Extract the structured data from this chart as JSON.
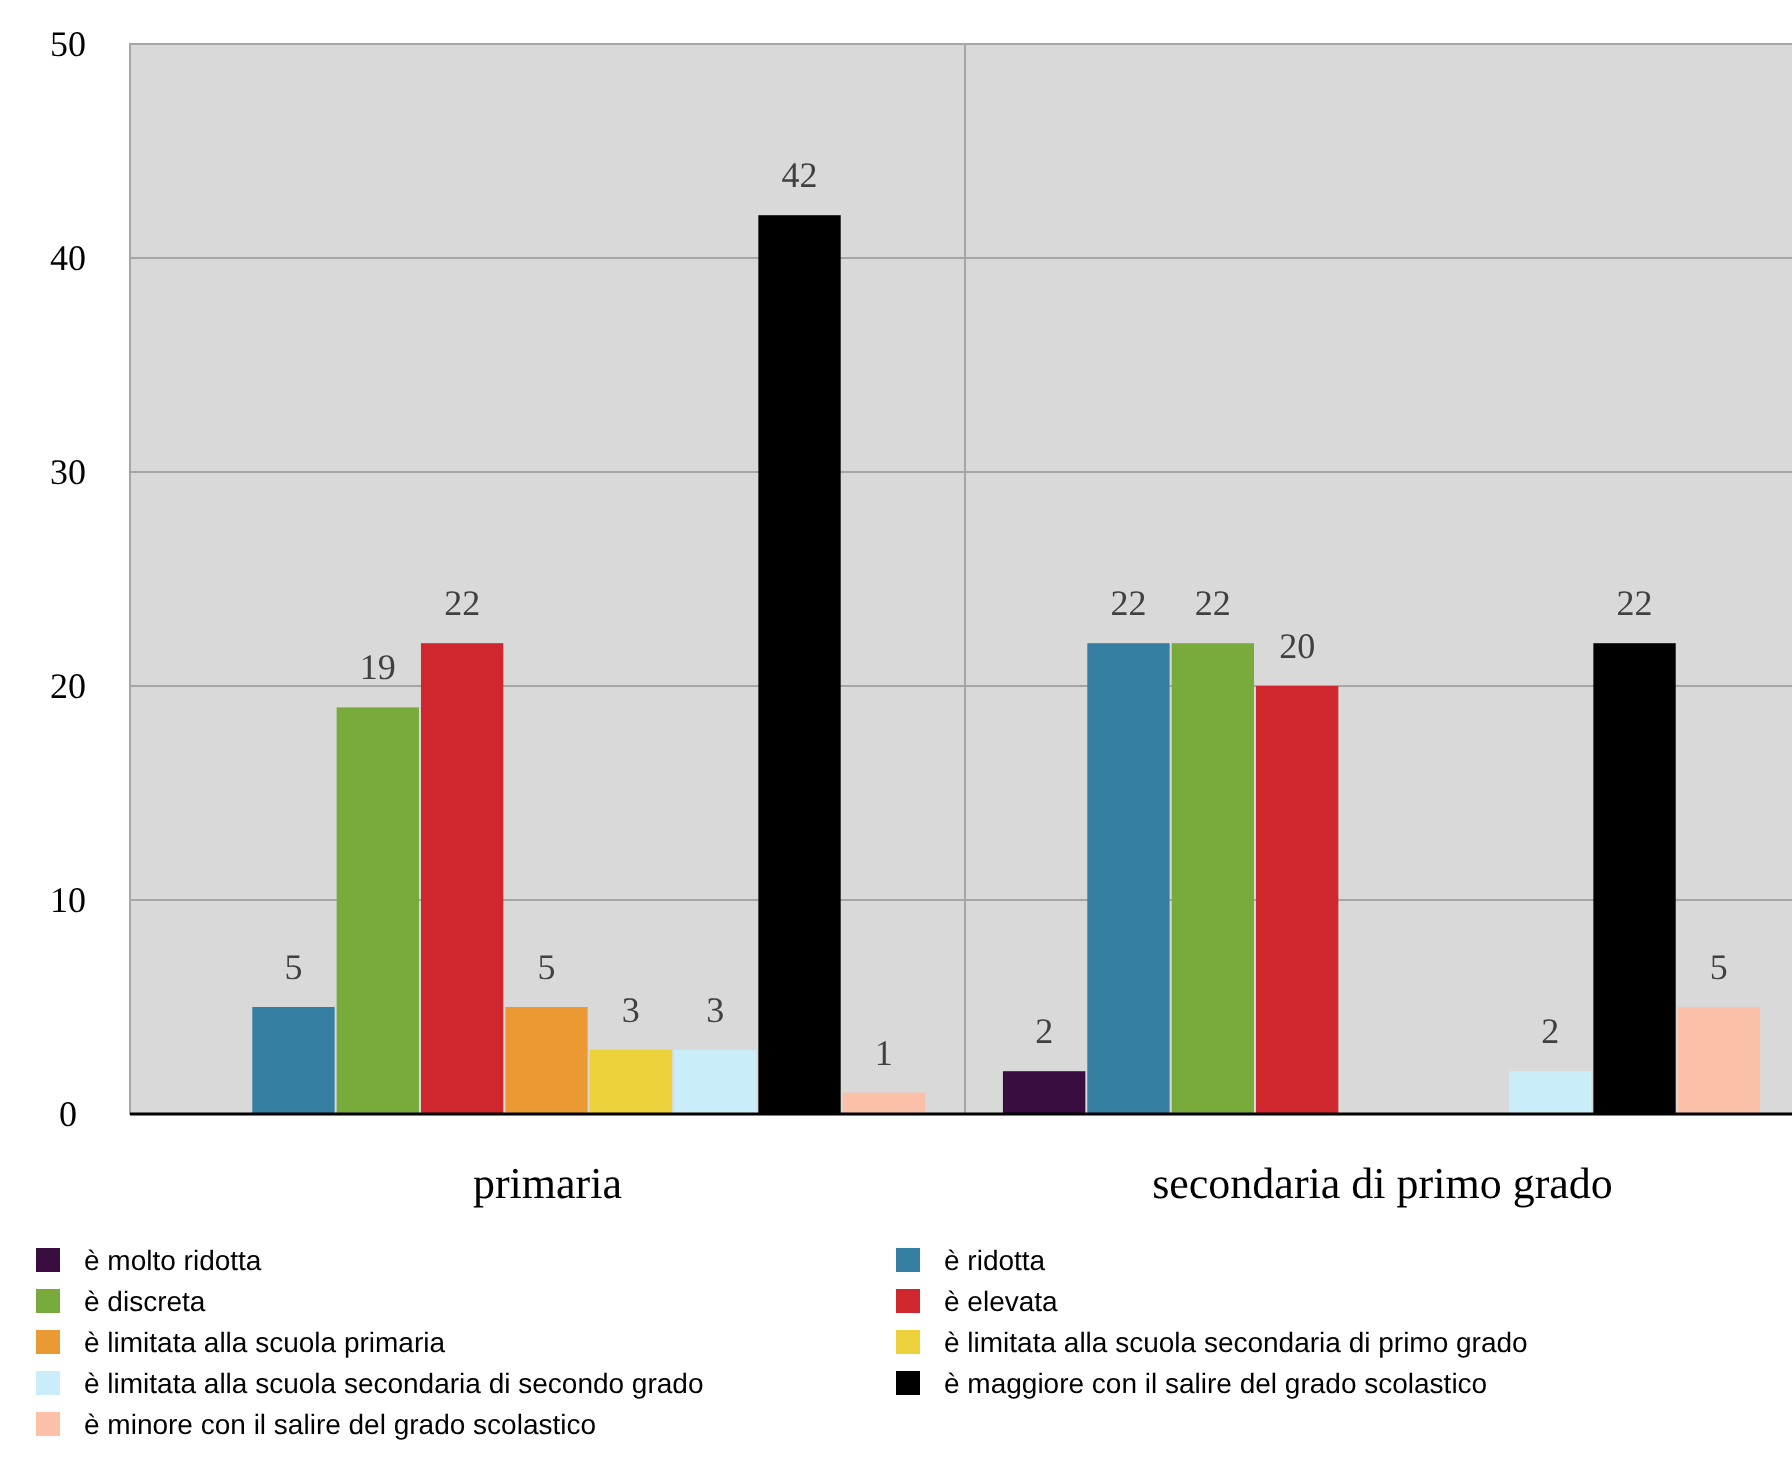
{
  "chart_data": {
    "type": "bar",
    "categories": [
      "primaria",
      "secondaria di primo grado"
    ],
    "series": [
      {
        "name": "è molto ridotta",
        "color": "#3a0d40",
        "values": [
          null,
          2
        ]
      },
      {
        "name": "è ridotta",
        "color": "#357fa3",
        "values": [
          5,
          22
        ]
      },
      {
        "name": "è discreta",
        "color": "#78ab3c",
        "values": [
          19,
          22
        ]
      },
      {
        "name": "è elevata",
        "color": "#d0262e",
        "values": [
          22,
          20
        ]
      },
      {
        "name": "è limitata alla scuola primaria",
        "color": "#eb9a33",
        "values": [
          5,
          null
        ]
      },
      {
        "name": "è limitata alla scuola secondaria di primo grado",
        "color": "#edd13a",
        "values": [
          3,
          null
        ]
      },
      {
        "name": "è limitata alla scuola secondaria di secondo grado",
        "color": "#c9eefa",
        "values": [
          3,
          2
        ]
      },
      {
        "name": "è maggiore con il salire del grado scolastico",
        "color": "#000000",
        "values": [
          42,
          22
        ]
      },
      {
        "name": "è minore con il salire del grado scolastico",
        "color": "#fbc0a8",
        "values": [
          1,
          5
        ]
      }
    ],
    "ylim": [
      0,
      50
    ],
    "yticks": [
      0,
      10,
      20,
      30,
      40,
      50
    ],
    "grid": true,
    "legend": "bottom",
    "data_labels": true
  }
}
